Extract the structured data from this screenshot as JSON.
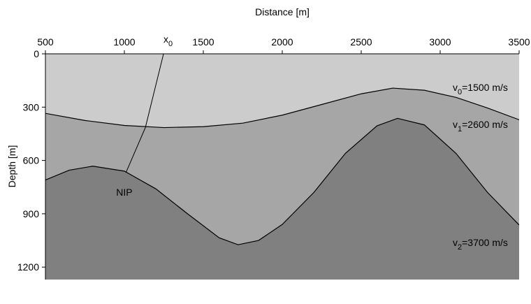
{
  "chart_data": {
    "type": "layers",
    "x_label": "Distance [m]",
    "y_label": "Depth [m]",
    "xlim": [
      500,
      3500
    ],
    "ylim": [
      0,
      1270
    ],
    "y_inverted": true,
    "xticks": [
      500,
      1000,
      1500,
      2000,
      2500,
      3000,
      3500
    ],
    "yticks": [
      0,
      300,
      600,
      900,
      1200
    ],
    "interfaces": [
      {
        "x": [
          500,
          750,
          1000,
          1250,
          1500,
          1750,
          2000,
          2250,
          2500,
          2700,
          2900,
          3100,
          3300,
          3500
        ],
        "y": [
          335,
          375,
          403,
          415,
          410,
          390,
          345,
          285,
          225,
          193,
          205,
          245,
          305,
          371
        ]
      },
      {
        "x": [
          500,
          650,
          800,
          1000,
          1200,
          1400,
          1600,
          1720,
          1850,
          2000,
          2200,
          2400,
          2600,
          2730,
          2900,
          3100,
          3300,
          3500
        ],
        "y": [
          710,
          655,
          632,
          660,
          760,
          900,
          1035,
          1074,
          1050,
          960,
          780,
          560,
          405,
          363,
          400,
          560,
          780,
          963
        ]
      }
    ],
    "layers": [
      {
        "color": "#cccccc",
        "label": {
          "base": "v",
          "sub": "0",
          "text": "=1500 m/s"
        }
      },
      {
        "color": "#a6a6a6",
        "label": {
          "base": "v",
          "sub": "1",
          "text": "=2600 m/s"
        }
      },
      {
        "color": "#808080",
        "label": {
          "base": "v",
          "sub": "2",
          "text": "=3700 m/s"
        }
      }
    ],
    "ray": {
      "x": [
        1248,
        1133,
        1010
      ],
      "y": [
        0,
        415,
        668
      ]
    },
    "ray_start_label": {
      "base": "x",
      "sub": "0"
    },
    "ray_end_label": "NIP"
  }
}
